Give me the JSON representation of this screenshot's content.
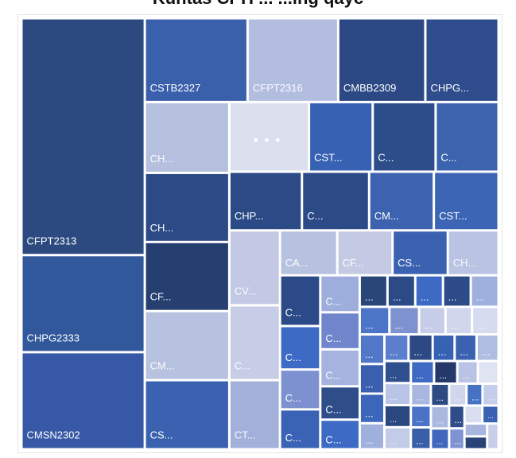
{
  "chart_data": {
    "type": "treemap",
    "title": "Kuntas CPH ... ...ing qayc",
    "overflow_marker": "...",
    "items": [
      {
        "label": "CFPT2313",
        "value": 10.0,
        "color": "#2d4a80"
      },
      {
        "label": "CHPG2333",
        "value": 4.1,
        "color": "#30589b"
      },
      {
        "label": "CMSN2302",
        "value": 4.1,
        "color": "#3658a6"
      },
      {
        "label": "CSTB2327",
        "value": 2.95,
        "color": "#3a60ac"
      },
      {
        "label": "CFPT2316",
        "value": 2.6,
        "color": "#b3bde0"
      },
      {
        "label": "CMBB2309",
        "value": 2.5,
        "color": "#2c4985"
      },
      {
        "label": "CHPG...",
        "value": 2.1,
        "color": "#2f4d8c"
      },
      {
        "label": "CH...",
        "value": 2.05,
        "color": "#b5c0df"
      },
      {
        "label": "CH...",
        "value": 2.0,
        "color": "#2b4a86"
      },
      {
        "label": "CF...",
        "value": 2.0,
        "color": "#253f70"
      },
      {
        "label": "CM...",
        "value": 2.0,
        "color": "#b7c1e0"
      },
      {
        "label": "CS...",
        "value": 2.0,
        "color": "#3a62b0"
      },
      {
        "label": "CST...",
        "value": 1.52,
        "color": "#3762b4"
      },
      {
        "label": "CHP...",
        "value": 1.46,
        "color": "#2b4a86"
      },
      {
        "label": "CM...",
        "value": 1.3,
        "color": "#3d62b0"
      },
      {
        "label": "CST...",
        "value": 1.3,
        "color": "#3c66b5"
      },
      {
        "label": "CV...",
        "value": 1.3,
        "color": "#c3c9e5"
      },
      {
        "label": "C...",
        "value": 1.5,
        "color": "#2d4c8a"
      },
      {
        "label": "C...",
        "value": 1.5,
        "color": "#3c63ae"
      },
      {
        "label": "C...",
        "value": 1.35,
        "color": "#2c4b86"
      },
      {
        "label": "C...",
        "value": 1.3,
        "color": "#c7cde6"
      },
      {
        "label": "CT...",
        "value": 1.2,
        "color": "#a3b1da"
      },
      {
        "label": "CA...",
        "value": 0.88,
        "color": "#b7c1e0"
      },
      {
        "label": "CF...",
        "value": 0.85,
        "color": "#c4cae4"
      },
      {
        "label": "CS...",
        "value": 0.85,
        "color": "#3a62b0"
      },
      {
        "label": "CH...",
        "value": 0.78,
        "color": "#b9c3e3"
      },
      {
        "label": "C...",
        "value": 0.7,
        "color": "#2c4a88"
      },
      {
        "label": "C...",
        "value": 0.6,
        "color": "#3c6ac4"
      },
      {
        "label": "C...",
        "value": 0.55,
        "color": "#7d90cf"
      },
      {
        "label": "C...",
        "value": 0.55,
        "color": "#3a62b5"
      },
      {
        "label": "C...",
        "value": 0.5,
        "color": "#9eaedc"
      },
      {
        "label": "C...",
        "value": 0.5,
        "color": "#6f86cc"
      },
      {
        "label": "C...",
        "value": 0.5,
        "color": "#a5b3de"
      },
      {
        "label": "C...",
        "value": 0.45,
        "color": "#2e4d89"
      },
      {
        "label": "C...",
        "value": 0.4,
        "color": "#3c6ac4"
      },
      {
        "label": "C...",
        "value": 0.3,
        "color": "#2a4679"
      },
      {
        "label": "C...",
        "value": 0.3,
        "color": "#2b4a86"
      },
      {
        "label": "C...",
        "value": 0.25,
        "color": "#c7cde8"
      },
      {
        "label": "C...",
        "value": 0.2,
        "color": "#3762b4"
      },
      {
        "label": "...",
        "value": 0.3,
        "color": "#3d6ac3"
      },
      {
        "label": "...",
        "value": 0.3,
        "color": "#2c4b88"
      },
      {
        "label": "...",
        "value": 0.25,
        "color": "#d0d6ec"
      },
      {
        "label": "...",
        "value": 0.3,
        "color": "#a0b0de"
      },
      {
        "label": "...",
        "value": 0.25,
        "color": "#d6dbef"
      },
      {
        "label": "...",
        "value": 0.28,
        "color": "#4c74c7"
      },
      {
        "label": "...",
        "value": 0.28,
        "color": "#7f92d0"
      },
      {
        "label": "...",
        "value": 0.25,
        "color": "#5177c9"
      },
      {
        "label": "...",
        "value": 0.25,
        "color": "#3a5fae"
      },
      {
        "label": "...",
        "value": 0.25,
        "color": "#3c66ba"
      },
      {
        "label": "...",
        "value": 0.22,
        "color": "#9fb0dc"
      },
      {
        "label": "...",
        "value": 0.22,
        "color": "#5b7fcc"
      },
      {
        "label": "...",
        "value": 0.22,
        "color": "#2c4983"
      },
      {
        "label": "...",
        "value": 0.2,
        "color": "#3a62b0"
      },
      {
        "label": "...",
        "value": 0.2,
        "color": "#b0bde2"
      },
      {
        "label": "...",
        "value": 0.2,
        "color": "#2f4f8e"
      },
      {
        "label": "...",
        "value": 0.2,
        "color": "#b9c4e6"
      },
      {
        "label": "...",
        "value": 0.2,
        "color": "#2a4780"
      },
      {
        "label": "...",
        "value": 0.2,
        "color": "#c2cbe8"
      },
      {
        "label": "...",
        "value": 0.18,
        "color": "#3e6ac4"
      },
      {
        "label": "...",
        "value": 0.18,
        "color": "#24386a"
      },
      {
        "label": "...",
        "value": 0.16,
        "color": "#b8c3e5"
      },
      {
        "label": "...",
        "value": 0.16,
        "color": "#dfe3f2"
      },
      {
        "label": "...",
        "value": 0.15,
        "color": "#a9b7e0"
      },
      {
        "label": "...",
        "value": 0.15,
        "color": "#4a72c6"
      },
      {
        "label": "...",
        "value": 0.15,
        "color": "#3b5ea8"
      },
      {
        "label": "...",
        "value": 0.14,
        "color": "#2d4a83"
      },
      {
        "label": "...",
        "value": 0.14,
        "color": "#aab8e0"
      },
      {
        "label": "...",
        "value": 0.13,
        "color": "#3f67bb"
      },
      {
        "label": "...",
        "value": 0.13,
        "color": "#d0d6ec"
      },
      {
        "label": "...",
        "value": 0.12,
        "color": "#4672c4"
      },
      {
        "label": "...",
        "value": 0.12,
        "color": "#c4cde9"
      },
      {
        "label": "...",
        "value": 0.12,
        "color": "#2e4c88"
      },
      {
        "label": "...",
        "value": 0.11,
        "color": "#7f93d2"
      },
      {
        "label": "...",
        "value": 0.11,
        "color": "#d9def0"
      },
      {
        "label": "...",
        "value": 0.1,
        "color": "#3b62b2"
      },
      {
        "label": "...",
        "value": 0.1,
        "color": "#a7b5df"
      },
      {
        "label": "...",
        "value": 0.1,
        "color": "#2a4377"
      },
      {
        "label": "...",
        "value": 0.1,
        "color": "#c6cee9"
      }
    ],
    "other": {
      "label": "...",
      "value": 1.9,
      "color": "#dcdfee"
    }
  }
}
